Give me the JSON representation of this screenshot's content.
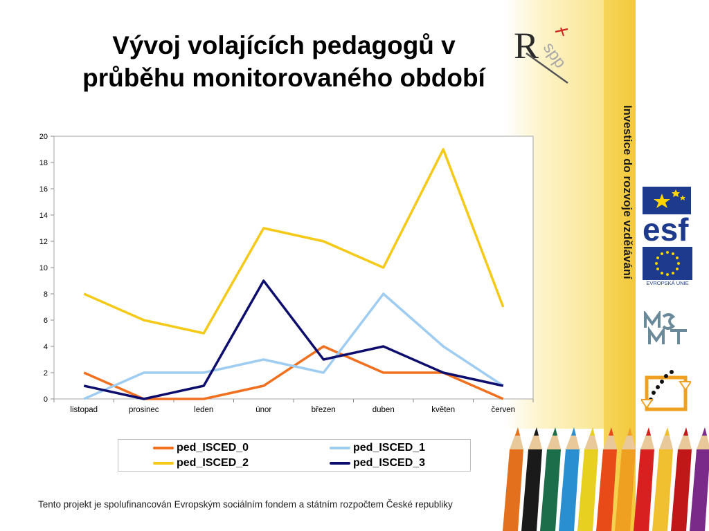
{
  "slide": {
    "title_line1": "Vývoj volajících pedagogů v",
    "title_line2": "průběhu monitorovaného období",
    "footer": "Tento projekt je spolufinancován Evropským sociálním fondem a státním rozpočtem České republiky",
    "side_text": "Investice do rozvoje vzdělávání",
    "eu_label": "EVROPSKÁ UNIE"
  },
  "chart_data": {
    "type": "line",
    "title": "",
    "xlabel": "",
    "ylabel": "",
    "categories": [
      "listopad",
      "prosinec",
      "leden",
      "únor",
      "březen",
      "duben",
      "květen",
      "červen"
    ],
    "ylim": [
      0,
      20
    ],
    "yticks": [
      "0",
      "2",
      "4",
      "6",
      "8",
      "10",
      "12",
      "14",
      "16",
      "18",
      "20"
    ],
    "grid": false,
    "legend": "bottom",
    "series": [
      {
        "name": "ped_ISCED_0",
        "color": "#f07020",
        "values": [
          2,
          0,
          0,
          1,
          4,
          2,
          2,
          0
        ]
      },
      {
        "name": "ped_ISCED_1",
        "color": "#9fcdf2",
        "values": [
          0,
          2,
          2,
          3,
          2,
          8,
          4,
          1
        ]
      },
      {
        "name": "ped_ISCED_2",
        "color": "#f5c917",
        "values": [
          8,
          6,
          5,
          13,
          12,
          10,
          19,
          7
        ]
      },
      {
        "name": "ped_ISCED_3",
        "color": "#0d0d6e",
        "values": [
          1,
          0,
          1,
          9,
          3,
          4,
          2,
          1
        ]
      }
    ]
  }
}
